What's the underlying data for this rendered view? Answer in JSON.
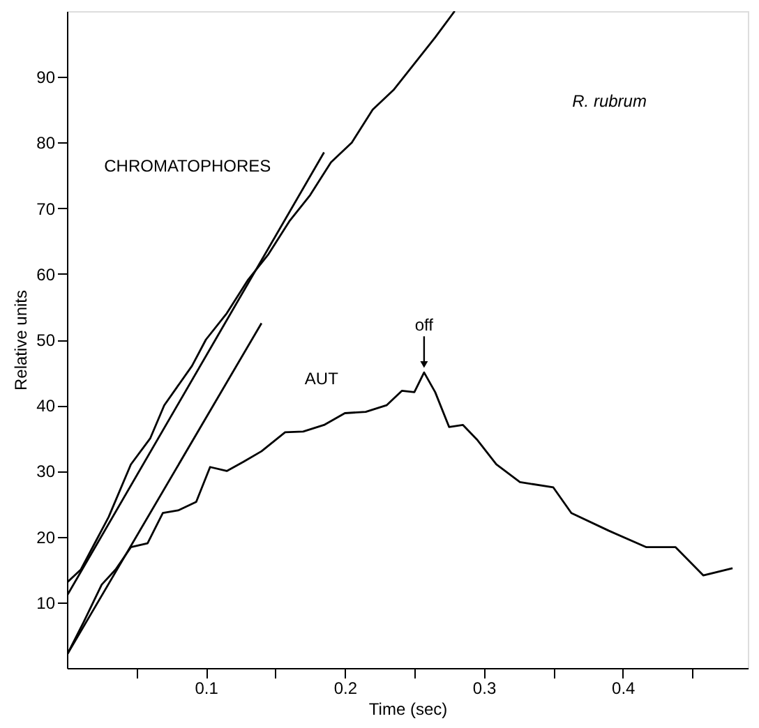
{
  "chart_data": {
    "type": "line",
    "xlabel": "Time (sec)",
    "ylabel": "Relative units",
    "xlim": [
      0,
      0.49
    ],
    "ylim": [
      0,
      100
    ],
    "xticks": [
      {
        "value": 0.05,
        "label": null
      },
      0.1,
      {
        "value": 0.15,
        "label": null
      },
      0.2,
      {
        "value": 0.25,
        "label": null
      },
      0.3,
      {
        "value": 0.35,
        "label": null
      },
      0.4,
      {
        "value": 0.45,
        "label": null
      }
    ],
    "yticks": [
      10,
      20,
      30,
      40,
      50,
      60,
      70,
      80,
      90
    ],
    "grid": false,
    "marker": "none",
    "line_style": "solid",
    "series": [
      {
        "color": "#000000",
        "x": [
          0,
          0.01,
          0.02,
          0.03,
          0.046,
          0.06,
          0.07,
          0.09,
          0.1,
          0.115,
          0.13,
          0.145,
          0.16,
          0.175,
          0.19,
          0.205,
          0.22,
          0.235,
          0.25,
          0.265,
          0.279
        ],
        "values": [
          13,
          15,
          19,
          23,
          31,
          35,
          40,
          46,
          50,
          54,
          59,
          63,
          68,
          72,
          77,
          80,
          85,
          88,
          92,
          96,
          100
        ]
      },
      {
        "color": "#000000",
        "x": [
          0,
          0.185
        ],
        "values": [
          11,
          78.5
        ]
      },
      {
        "color": "#000000",
        "x": [
          0,
          0.14
        ],
        "values": [
          2,
          52.5
        ]
      },
      {
        "color": "#000000",
        "x": [
          0,
          0.012,
          0.025,
          0.035,
          0.046,
          0.058,
          0.069,
          0.08,
          0.093,
          0.103,
          0.115,
          0.127,
          0.14,
          0.157,
          0.17,
          0.185,
          0.2,
          0.215,
          0.23,
          0.241,
          0.25,
          0.257,
          0.265,
          0.275,
          0.285,
          0.295,
          0.309,
          0.326,
          0.35,
          0.363,
          0.39,
          0.417,
          0.438,
          0.458,
          0.479
        ],
        "values": [
          2,
          7,
          12.7,
          15,
          18.4,
          19,
          23.6,
          24,
          25.3,
          30.6,
          30,
          31.4,
          33,
          35.9,
          36,
          37,
          38.8,
          39,
          40,
          42.2,
          42,
          45,
          42,
          36.7,
          37,
          34.8,
          31,
          28.3,
          27.5,
          23.6,
          20.9,
          18.4,
          18.4,
          14.1,
          15.2
        ]
      }
    ],
    "annotations": [
      "CHROMATOPHORES",
      "AUT",
      "R. rubrum",
      {
        "text": "off",
        "x": 0.257,
        "y": 45
      }
    ]
  }
}
